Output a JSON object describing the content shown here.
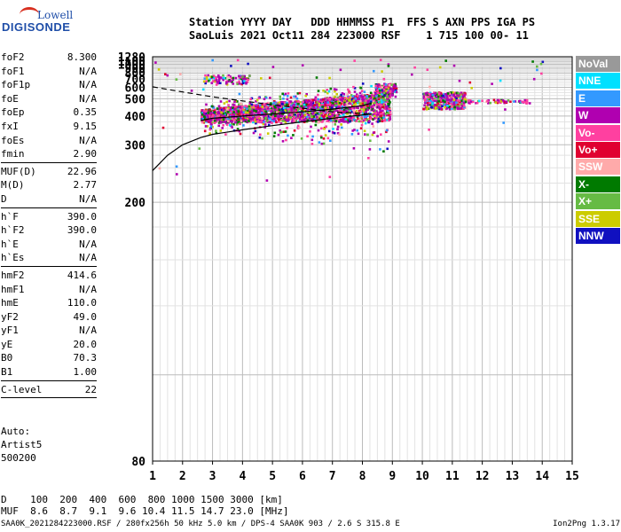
{
  "logo": {
    "line1": "Lowell",
    "line2": "DIGISONDE"
  },
  "header": {
    "line1": "Station YYYY DAY   DDD HHMMSS P1  FFS S AXN PPS IGA PS",
    "line2": "SaoLuis 2021 Oct11 284 223000 RSF    1 715 100 00- 11"
  },
  "params": [
    [
      [
        "foF2",
        "8.300"
      ],
      [
        "foF1",
        "N/A"
      ],
      [
        "foF1p",
        "N/A"
      ],
      [
        "foE",
        "N/A"
      ],
      [
        "foEp",
        "0.35"
      ],
      [
        "fxI",
        "9.15"
      ],
      [
        "foEs",
        "N/A"
      ],
      [
        "fmin",
        "2.90"
      ]
    ],
    [
      [
        "MUF(D)",
        "22.96"
      ],
      [
        "M(D)",
        "2.77"
      ],
      [
        "D",
        "N/A"
      ]
    ],
    [
      [
        "h`F",
        "390.0"
      ],
      [
        "h`F2",
        "390.0"
      ],
      [
        "h`E",
        "N/A"
      ],
      [
        "h`Es",
        "N/A"
      ]
    ],
    [
      [
        "hmF2",
        "414.6"
      ],
      [
        "hmF1",
        "N/A"
      ],
      [
        "hmE",
        "110.0"
      ],
      [
        "yF2",
        "49.0"
      ],
      [
        "yF1",
        "N/A"
      ],
      [
        "yE",
        "20.0"
      ],
      [
        "B0",
        "70.3"
      ],
      [
        "B1",
        "1.00"
      ]
    ],
    [
      [
        "C-level",
        "22"
      ]
    ]
  ],
  "auto": {
    "line1": "Auto:",
    "line2": "Artist5",
    "line3": "500200"
  },
  "legend": [
    {
      "label": "NoVal",
      "color": "#999999"
    },
    {
      "label": "NNE",
      "color": "#00e0ff"
    },
    {
      "label": "E",
      "color": "#3399ff"
    },
    {
      "label": "W",
      "color": "#b000b0"
    },
    {
      "label": "Vo-",
      "color": "#ff40a0"
    },
    {
      "label": "Vo+",
      "color": "#e00030"
    },
    {
      "label": "SSW",
      "color": "#ffaaaa"
    },
    {
      "label": "X-",
      "color": "#007a00"
    },
    {
      "label": "X+",
      "color": "#66bb44"
    },
    {
      "label": "SSE",
      "color": "#cccc00"
    },
    {
      "label": "NNW",
      "color": "#1010c0"
    }
  ],
  "muf_table": {
    "row1": "D    100  200  400  600  800 1000 1500 3000 [km]",
    "row2": "MUF  8.6  8.7  9.1  9.6 10.4 11.5 14.7 23.0 [MHz]"
  },
  "footer": {
    "left": "SAA0K_2021284223000.RSF / 280fx256h 50 kHz 5.0 km / DPS-4 SAA0K 903 / 2.6 S 315.8 E",
    "right": "Ion2Png 1.3.17"
  },
  "chart_data": {
    "type": "scatter",
    "title": "",
    "xlabel": "",
    "ylabel": "",
    "xlim": [
      1,
      15
    ],
    "ylim": [
      80,
      1280
    ],
    "y_scale": "reciprocal",
    "x_ticks": [
      1,
      2,
      3,
      4,
      5,
      6,
      7,
      8,
      9,
      10,
      11,
      12,
      13,
      14,
      15
    ],
    "y_ticks": [
      80,
      200,
      300,
      400,
      500,
      600,
      700,
      800,
      900,
      1000,
      1100,
      1280
    ],
    "grid": true,
    "clusters": [
      {
        "x": [
          2.6,
          8.9
        ],
        "y": [
          340,
          500
        ],
        "desc": "dense F2 echo trace"
      },
      {
        "x": [
          10.0,
          11.4
        ],
        "y": [
          440,
          560
        ],
        "desc": "F2 echo cluster"
      },
      {
        "x": [
          11.4,
          13.6
        ],
        "y": [
          470,
          500
        ],
        "desc": "sparse tail"
      }
    ],
    "profile_dashed": {
      "x": [
        1.0,
        2.0,
        3.0,
        4.0,
        5.0,
        6.0,
        7.0,
        8.3
      ],
      "y": [
        605,
        555,
        515,
        485,
        460,
        440,
        420,
        410
      ]
    },
    "profile_solid_lower": {
      "x": [
        1.0,
        1.5,
        2.0,
        2.6,
        3.0,
        4.0,
        5.0,
        6.0,
        7.0,
        8.3
      ],
      "y": [
        245,
        275,
        300,
        320,
        330,
        345,
        360,
        375,
        390,
        410
      ]
    },
    "profile_solid_upper": {
      "x": [
        2.6,
        3.0,
        4.0,
        5.0,
        6.0,
        7.0,
        8.0,
        8.3
      ],
      "y": [
        380,
        390,
        400,
        410,
        420,
        435,
        455,
        470
      ]
    }
  }
}
